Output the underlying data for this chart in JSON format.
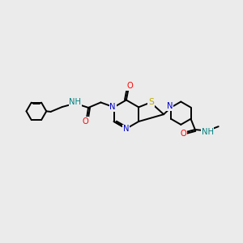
{
  "background_color": "#ebebeb",
  "bond_color": "#000000",
  "N_color": "#0000cc",
  "O_color": "#ff0000",
  "S_color": "#bbaa00",
  "NH_color": "#008080",
  "figsize": [
    3.0,
    3.0
  ],
  "dpi": 100,
  "xlim": [
    0,
    10
  ],
  "ylim": [
    0,
    10
  ],
  "lw": 1.4,
  "fs": 7.2
}
